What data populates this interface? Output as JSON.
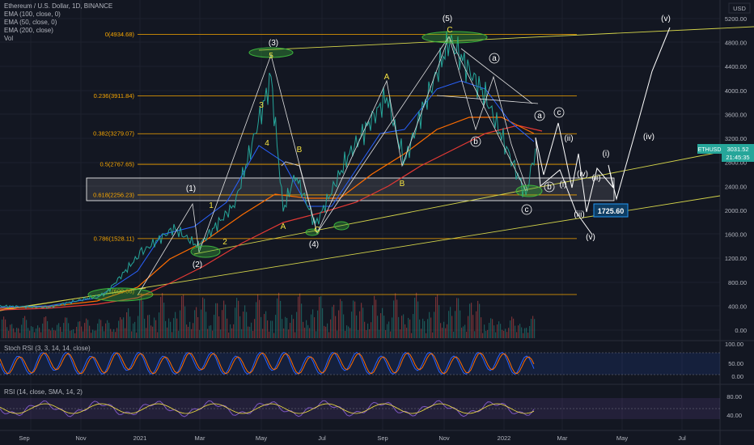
{
  "legend": {
    "title": "Ethereum / U.S. Dollar, 1D, BINANCE",
    "ema100": "EMA (100, close, 0)",
    "ema50": "EMA (50, close, 0)",
    "ema200": "EMA (200, close)",
    "vol": "Vol",
    "stoch": "Stoch RSI (3, 3, 14, 14, close)",
    "rsi": "RSI (14, close, SMA, 14, 2)"
  },
  "currency": "USD",
  "symbol_tag": "ETHUSD",
  "last_price": "3031.52",
  "countdown": "21:45:35",
  "target_label": "1725.60",
  "price_axis": [
    "5200.00",
    "4800.00",
    "4400.00",
    "4000.00",
    "3600.00",
    "3200.00",
    "2800.00",
    "2400.00",
    "2000.00",
    "1600.00",
    "1200.00",
    "800.00",
    "400.00",
    "0.00"
  ],
  "stoch_axis": [
    "100.00",
    "50.00",
    "0.00"
  ],
  "rsi_axis": [
    "80.00",
    "40.00"
  ],
  "date_axis": [
    "Sep",
    "Nov",
    "2021",
    "Mar",
    "May",
    "Jul",
    "Sep",
    "Nov",
    "2022",
    "Mar",
    "May",
    "Jul"
  ],
  "fib_levels": [
    {
      "label": "0(4934.68)",
      "value": 4934.68
    },
    {
      "label": "0.236(3911.84)",
      "value": 3911.84
    },
    {
      "label": "0.382(3279.07)",
      "value": 3279.07
    },
    {
      "label": "0.5(2767.65)",
      "value": 2767.65
    },
    {
      "label": "0.618(2256.23)",
      "value": 2256.23
    },
    {
      "label": "0.786(1528.11)",
      "value": 1528.11
    },
    {
      "label": "1(600.66)",
      "value": 600.66
    }
  ],
  "waves_major": [
    "(1)",
    "(2)",
    "(3)",
    "(4)",
    "(5)"
  ],
  "waves_minor_yellow": [
    "1",
    "2",
    "3",
    "4",
    "5",
    "A",
    "B",
    "C",
    "A",
    "B",
    "C"
  ],
  "waves_circled": [
    "a",
    "b",
    "c",
    "a",
    "b",
    "c"
  ],
  "waves_projection": [
    "(i)",
    "(ii)",
    "(iii)",
    "(iv)",
    "(v)",
    "(i)",
    "(ii)",
    "(iii)",
    "(iv)",
    "(v)"
  ],
  "chart_data": {
    "type": "line",
    "title": "Ethereum / U.S. Dollar, 1D, BINANCE",
    "ylim": [
      0,
      5400
    ],
    "series": [
      {
        "name": "ETHUSD",
        "x": [
          "2020-08",
          "2020-10",
          "2020-12",
          "2021-01",
          "2021-02",
          "2021-03",
          "2021-04",
          "2021-05-12",
          "2021-05-23",
          "2021-06",
          "2021-07-20",
          "2021-08",
          "2021-09-03",
          "2021-09-21",
          "2021-10",
          "2021-11-10",
          "2021-12",
          "2022-01-24",
          "2022-02-10"
        ],
        "values": [
          400,
          380,
          600,
          1300,
          1700,
          1400,
          2100,
          4200,
          2000,
          2600,
          1750,
          2900,
          3900,
          2800,
          3600,
          4850,
          3900,
          2250,
          3031
        ]
      }
    ]
  }
}
